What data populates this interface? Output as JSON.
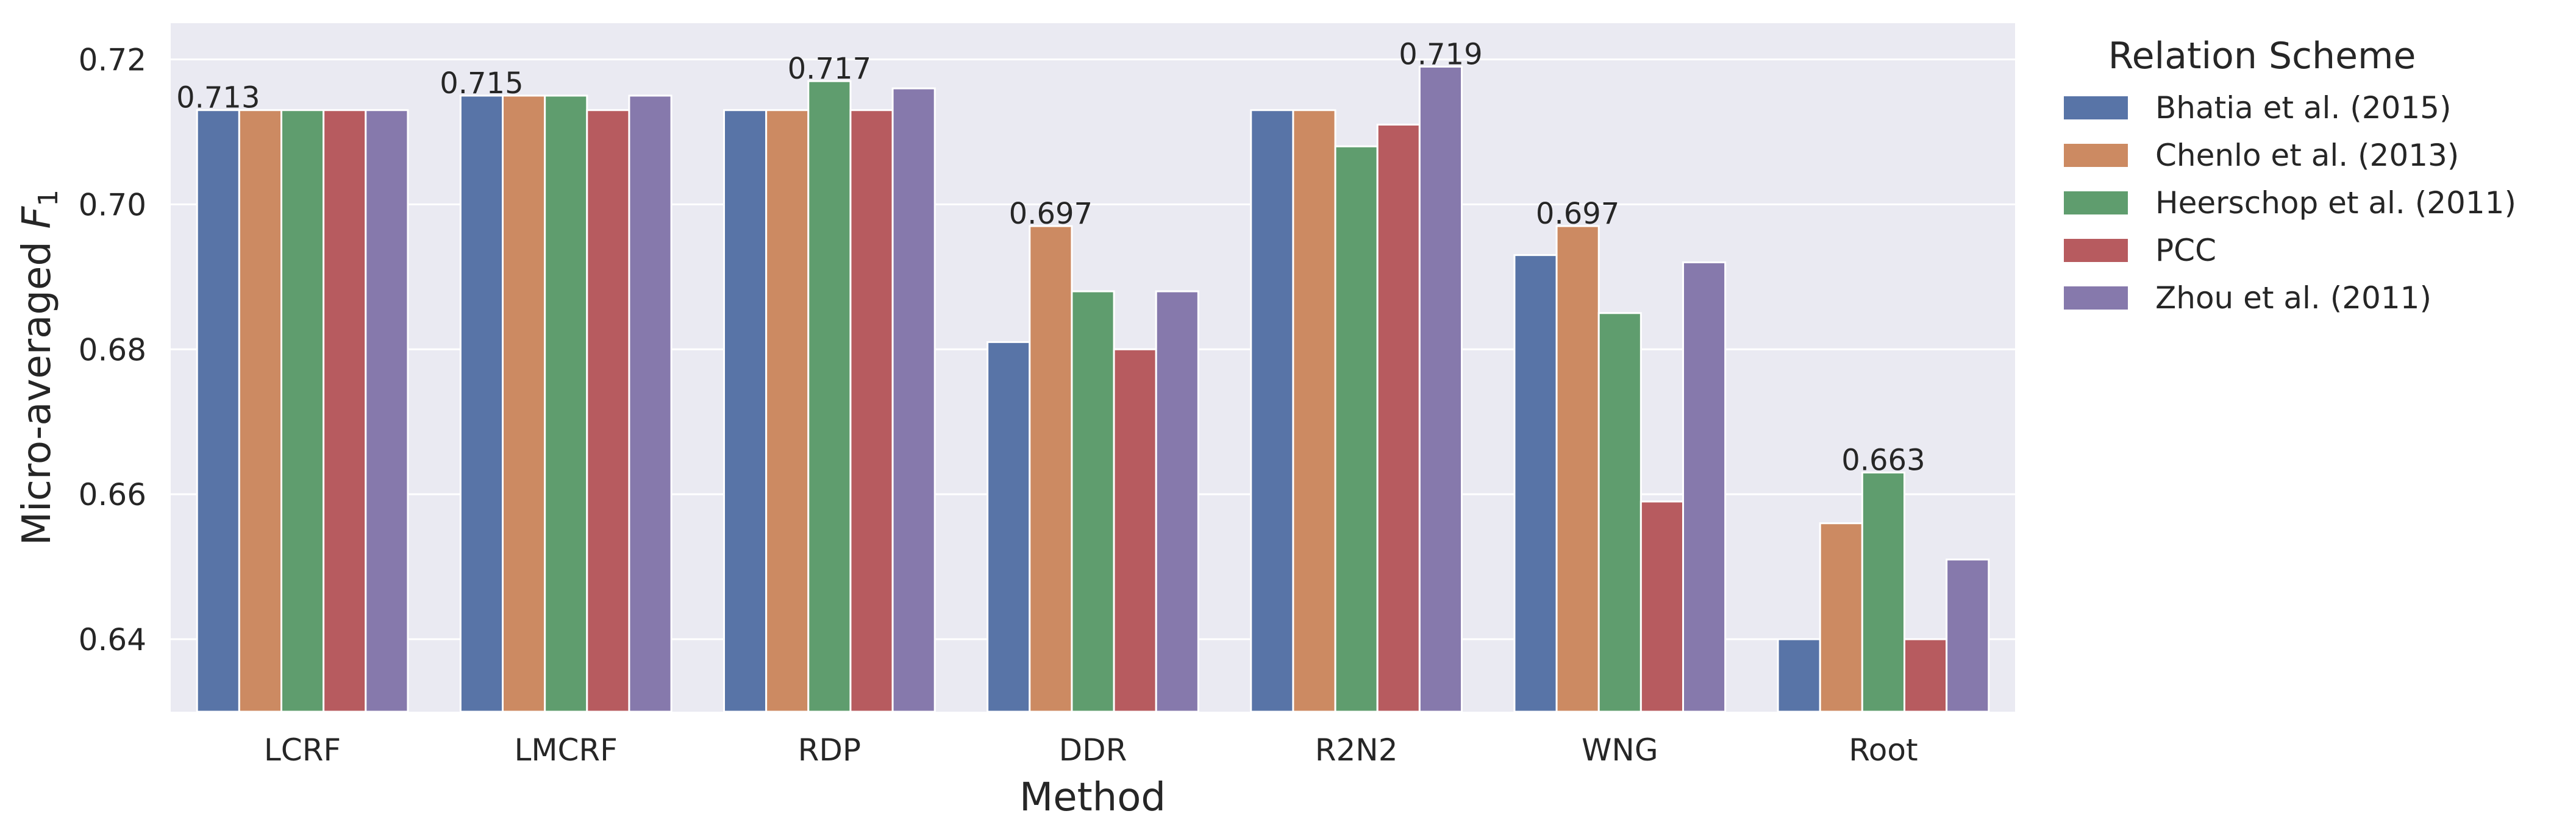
{
  "chart_data": {
    "type": "bar",
    "xlabel": "Method",
    "ylabel_text": "Micro-averaged ",
    "ylabel_math": "F",
    "ylabel_sub": "1",
    "ylim": [
      0.63,
      0.725
    ],
    "yticks": [
      "0.64",
      "0.66",
      "0.68",
      "0.70",
      "0.72"
    ],
    "grid": true,
    "legend_title": "Relation Scheme",
    "legend_placement": "outside-right",
    "categories": [
      "LCRF",
      "LMCRF",
      "RDP",
      "DDR",
      "R2N2",
      "WNG",
      "Root"
    ],
    "series": [
      {
        "name": "Bhatia et al. (2015)",
        "color": "#5874a7",
        "values": [
          0.713,
          0.715,
          0.713,
          0.681,
          0.713,
          0.693,
          0.64
        ]
      },
      {
        "name": "Chenlo et al. (2013)",
        "color": "#cc8a62",
        "values": [
          0.713,
          0.715,
          0.713,
          0.697,
          0.713,
          0.697,
          0.656
        ]
      },
      {
        "name": "Heerschop et al. (2011)",
        "color": "#5f9d6e",
        "values": [
          0.713,
          0.715,
          0.717,
          0.688,
          0.708,
          0.685,
          0.663
        ]
      },
      {
        "name": "PCC",
        "color": "#b75b5f",
        "values": [
          0.713,
          0.713,
          0.713,
          0.68,
          0.711,
          0.659,
          0.64
        ]
      },
      {
        "name": "Zhou et al. (2011)",
        "color": "#8679ac",
        "values": [
          0.713,
          0.715,
          0.716,
          0.688,
          0.719,
          0.692,
          0.651
        ]
      }
    ],
    "annotations": [
      {
        "category": "LCRF",
        "text": "0.713"
      },
      {
        "category": "LMCRF",
        "text": "0.715"
      },
      {
        "category": "RDP",
        "text": "0.717"
      },
      {
        "category": "DDR",
        "text": "0.697"
      },
      {
        "category": "R2N2",
        "text": "0.719"
      },
      {
        "category": "WNG",
        "text": "0.697"
      },
      {
        "category": "Root",
        "text": "0.663"
      }
    ],
    "colors": {
      "plot_background": "#eaeaf2",
      "grid": "#ffffff"
    }
  }
}
